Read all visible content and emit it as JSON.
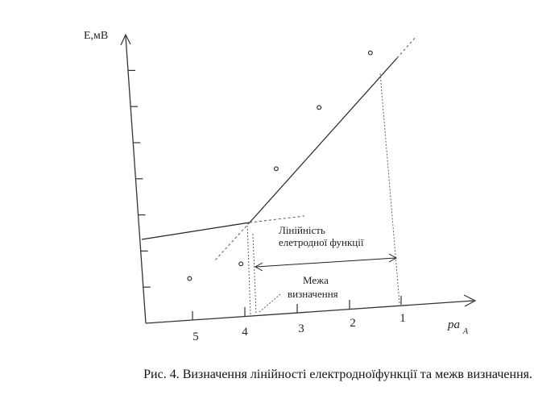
{
  "chart_data": {
    "type": "line",
    "ylabel": "E,мВ",
    "xlabel": "pa",
    "xlabel_sub": "A",
    "x_ticks": [
      "5",
      "4",
      "3",
      "2",
      "1"
    ],
    "y_tick_count": 7,
    "series": [
      {
        "points": [
          [
            5.0,
            1.15
          ],
          [
            4.0,
            1.45
          ]
        ]
      },
      {
        "points": [
          [
            3.2,
            4.0
          ],
          [
            2.3,
            5.6
          ],
          [
            1.25,
            7.0
          ]
        ]
      }
    ],
    "annotations": {
      "linearity": "Лінійність\nелетродної функції",
      "limit": "Межа\nвизначення"
    }
  },
  "caption": "Рис. 4. Визначення лінійності електродноїфункції та межв визначення."
}
